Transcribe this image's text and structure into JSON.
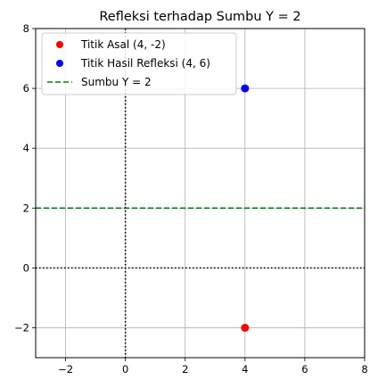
{
  "chart_data": {
    "type": "scatter",
    "title": "Refleksi terhadap Sumbu Y = 2",
    "xlabel": "",
    "ylabel": "",
    "xlim": [
      -3,
      8
    ],
    "ylim": [
      -3,
      8
    ],
    "grid": true,
    "legend_position": "top-left",
    "x_ticks": [
      -2,
      0,
      2,
      4,
      6,
      8
    ],
    "y_ticks": [
      -2,
      0,
      2,
      4,
      6,
      8
    ],
    "x_tick_labels": [
      "−2",
      "0",
      "2",
      "4",
      "6",
      "8"
    ],
    "y_tick_labels": [
      "−2",
      "0",
      "2",
      "4",
      "6",
      "8"
    ],
    "points": [
      {
        "name": "Titik Asal (4, -2)",
        "x": 4,
        "y": -2,
        "color": "#ff0000"
      },
      {
        "name": "Titik Hasil Refleksi (4, 6)",
        "x": 4,
        "y": 6,
        "color": "#0000ff"
      }
    ],
    "reflection_line": {
      "name": "Sumbu Y = 2",
      "y": 2,
      "color": "#008000",
      "style": "dashed"
    },
    "reference_lines": [
      {
        "axis": "x",
        "value": 0,
        "color": "#000000",
        "style": "dotted"
      },
      {
        "axis": "y",
        "value": 0,
        "color": "#000000",
        "style": "dotted"
      }
    ]
  }
}
